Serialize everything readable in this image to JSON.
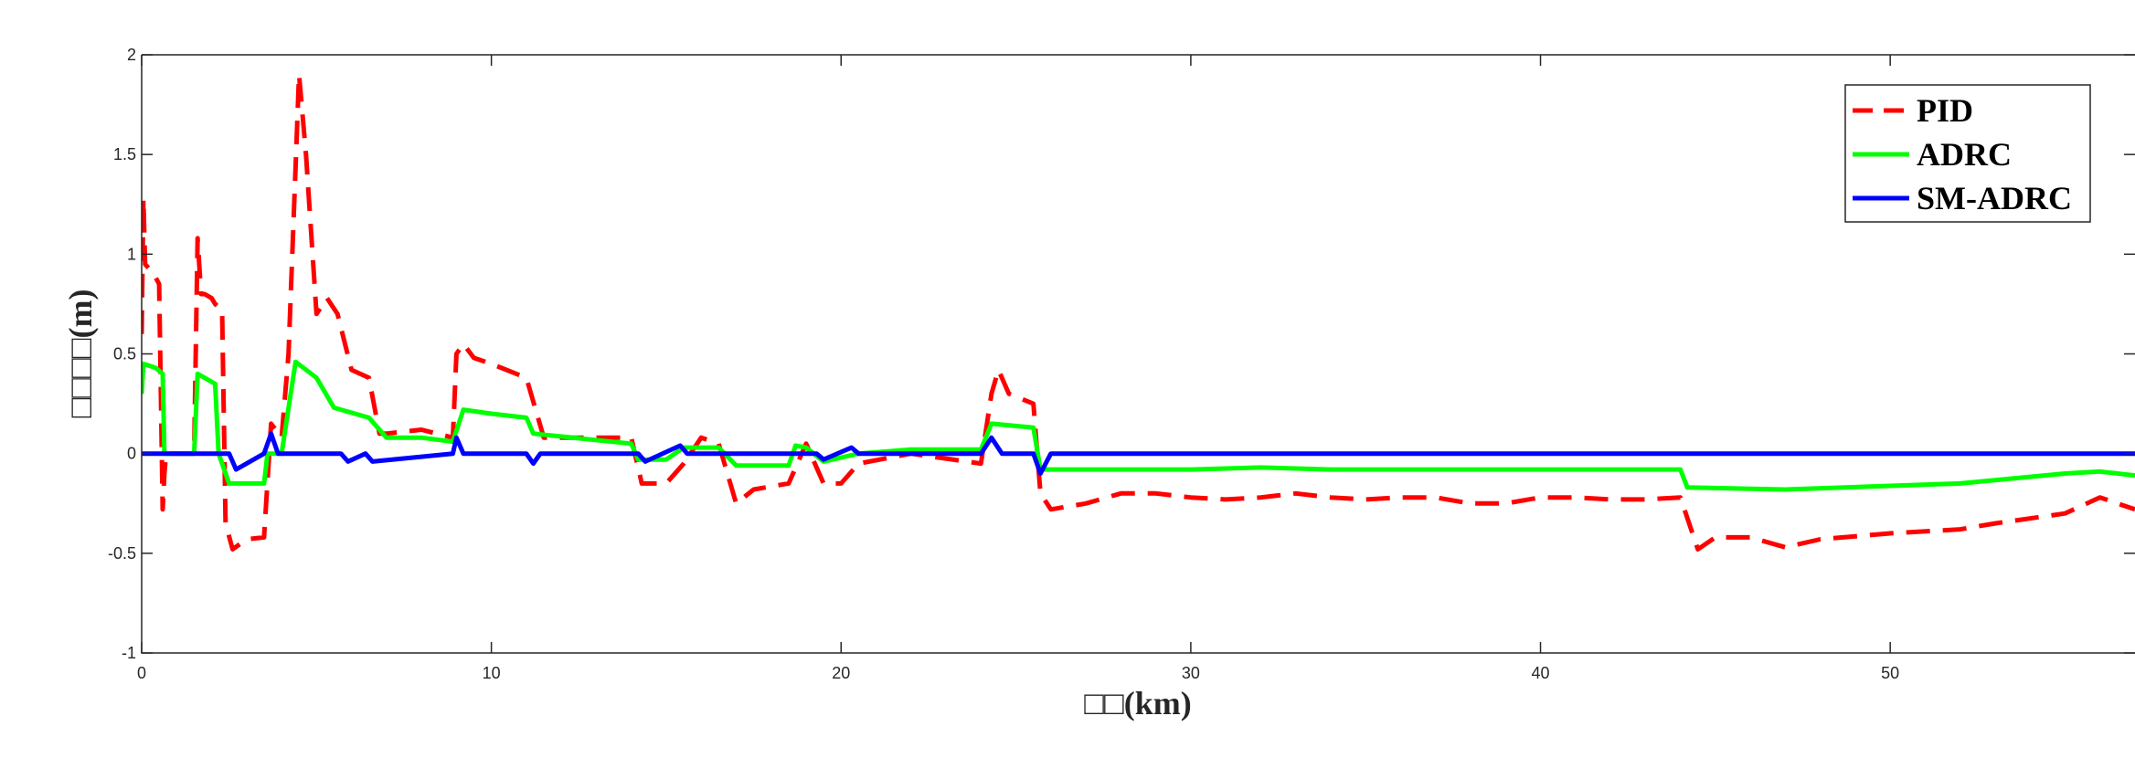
{
  "chart_data": {
    "type": "line",
    "title": "",
    "xlabel": "□□(km)",
    "ylabel": "□□□□(m)",
    "xlim": [
      0,
      57
    ],
    "ylim": [
      -1,
      2
    ],
    "xticks": [
      0,
      10,
      20,
      30,
      40,
      50
    ],
    "yticks": [
      -1,
      -0.5,
      0,
      0.5,
      1,
      1.5,
      2
    ],
    "grid": false,
    "legend": "top-right",
    "series": [
      {
        "name": "PID",
        "color": "#ff0000",
        "style": "dashed",
        "x": [
          0,
          0.05,
          0.1,
          0.2,
          0.35,
          0.5,
          0.6,
          0.65,
          0.7,
          0.9,
          1.5,
          1.6,
          1.7,
          1.8,
          2.0,
          2.1,
          2.3,
          2.4,
          2.6,
          3.0,
          3.5,
          3.7,
          4.0,
          4.2,
          4.5,
          4.7,
          5.0,
          5.3,
          5.6,
          6.0,
          6.5,
          6.8,
          7.0,
          8.0,
          8.9,
          9.0,
          9.2,
          9.5,
          10.0,
          11.0,
          11.5,
          14.0,
          14.3,
          15.0,
          15.5,
          16.0,
          16.5,
          17.0,
          17.5,
          18.5,
          19.0,
          19.5,
          20.0,
          20.5,
          22.0,
          24.0,
          24.3,
          24.5,
          24.8,
          25.5,
          25.7,
          26.0,
          27.0,
          28.0,
          29.0,
          30.0,
          31.0,
          32.0,
          33.0,
          34.0,
          35.0,
          36.0,
          37.0,
          38.0,
          39.0,
          40.0,
          41.0,
          42.0,
          43.0,
          44.0,
          44.5,
          45.0,
          46.0,
          47.0,
          48.0,
          50.0,
          52.0,
          53.0,
          55.0,
          56.0,
          57.0
        ],
        "y": [
          0.6,
          1.28,
          0.95,
          0.93,
          0.9,
          0.85,
          -0.28,
          -0.1,
          0.0,
          0.0,
          0.0,
          1.08,
          0.8,
          0.8,
          0.78,
          0.75,
          0.72,
          -0.35,
          -0.48,
          -0.43,
          -0.42,
          0.15,
          0.08,
          0.5,
          1.9,
          1.5,
          0.7,
          0.78,
          0.7,
          0.42,
          0.38,
          0.1,
          0.1,
          0.12,
          0.08,
          0.5,
          0.55,
          0.48,
          0.45,
          0.38,
          0.08,
          0.08,
          -0.15,
          -0.15,
          -0.05,
          0.08,
          0.05,
          -0.25,
          -0.18,
          -0.15,
          0.05,
          -0.15,
          -0.15,
          -0.05,
          0.0,
          -0.05,
          0.3,
          0.42,
          0.3,
          0.25,
          -0.2,
          -0.28,
          -0.25,
          -0.2,
          -0.2,
          -0.22,
          -0.23,
          -0.22,
          -0.2,
          -0.22,
          -0.23,
          -0.22,
          -0.22,
          -0.25,
          -0.25,
          -0.22,
          -0.22,
          -0.23,
          -0.23,
          -0.22,
          -0.48,
          -0.42,
          -0.42,
          -0.47,
          -0.43,
          -0.4,
          -0.38,
          -0.35,
          -0.3,
          -0.22,
          -0.28
        ]
      },
      {
        "name": "ADRC",
        "color": "#00ff00",
        "style": "solid",
        "x": [
          0,
          0.05,
          0.4,
          0.6,
          0.65,
          1.5,
          1.6,
          2.1,
          2.2,
          2.5,
          3.5,
          3.6,
          4.0,
          4.4,
          5.0,
          5.5,
          6.5,
          7.0,
          8.0,
          8.9,
          9.2,
          10.0,
          11.0,
          11.2,
          14.0,
          14.2,
          15.0,
          15.5,
          16.5,
          17.0,
          18.5,
          18.7,
          19.0,
          19.5,
          20.5,
          22.0,
          24.0,
          24.3,
          25.5,
          25.7,
          27.0,
          30.0,
          32.0,
          34.0,
          37.0,
          40.0,
          44.0,
          44.2,
          47.0,
          52.0,
          55.0,
          56.0,
          57.0
        ],
        "y": [
          0.3,
          0.45,
          0.43,
          0.4,
          0.0,
          0.0,
          0.4,
          0.35,
          0.0,
          -0.15,
          -0.15,
          0.0,
          0.0,
          0.46,
          0.38,
          0.23,
          0.18,
          0.08,
          0.08,
          0.06,
          0.22,
          0.2,
          0.18,
          0.1,
          0.05,
          -0.03,
          -0.03,
          0.03,
          0.03,
          -0.06,
          -0.06,
          0.04,
          0.03,
          -0.04,
          0.0,
          0.02,
          0.02,
          0.15,
          0.13,
          -0.08,
          -0.08,
          -0.08,
          -0.07,
          -0.08,
          -0.08,
          -0.08,
          -0.08,
          -0.17,
          -0.18,
          -0.15,
          -0.1,
          -0.09,
          -0.11
        ]
      },
      {
        "name": "SM-ADRC",
        "color": "#0000ff",
        "style": "solid",
        "x": [
          0,
          1.0,
          2.0,
          2.5,
          2.7,
          3.5,
          3.7,
          3.9,
          4.0,
          5.0,
          5.7,
          5.9,
          6.4,
          6.6,
          8.9,
          9.0,
          9.2,
          11.0,
          11.2,
          11.4,
          14.2,
          14.4,
          15.4,
          15.6,
          16.5,
          19.3,
          19.5,
          20.3,
          20.5,
          24.0,
          24.3,
          24.6,
          25.5,
          25.7,
          26.0,
          27.0,
          30.0,
          57.0
        ],
        "y": [
          0.0,
          0.0,
          0.0,
          0.0,
          -0.08,
          0.0,
          0.1,
          0.0,
          0.0,
          0.0,
          0.0,
          -0.04,
          0.0,
          -0.04,
          0.0,
          0.08,
          0.0,
          0.0,
          -0.05,
          0.0,
          0.0,
          -0.04,
          0.04,
          0.0,
          0.0,
          0.0,
          -0.03,
          0.03,
          0.0,
          0.0,
          0.08,
          0.0,
          0.0,
          -0.1,
          0.0,
          0.0,
          0.0,
          0.0
        ]
      }
    ]
  }
}
